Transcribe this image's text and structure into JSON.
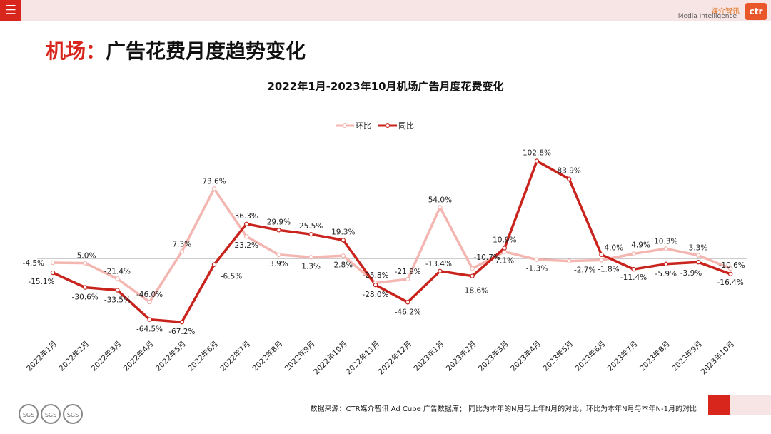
{
  "header": {
    "menu_icon": "menu-icon",
    "brand_cn": "媒介智讯",
    "brand_en": "Media Intelligence",
    "brand_logo": "ctr"
  },
  "page": {
    "title_highlight": "机场：",
    "title_rest": "广告花费月度趋势变化"
  },
  "chart_data": {
    "type": "line",
    "title": "2022年1月-2023年10月机场广告月度花费变化",
    "categories": [
      "2022年1月",
      "2022年2月",
      "2022年3月",
      "2022年4月",
      "2022年5月",
      "2022年6月",
      "2022年7月",
      "2022年8月",
      "2022年9月",
      "2022年10月",
      "2022年11月",
      "2022年12月",
      "2023年1月",
      "2023年2月",
      "2023年3月",
      "2023年4月",
      "2023年5月",
      "2023年6月",
      "2023年7月",
      "2023年8月",
      "2023年9月",
      "2023年10月"
    ],
    "series": [
      {
        "name": "环比",
        "color": "#f4b6b1",
        "values": [
          -4.5,
          -5.0,
          -21.4,
          -46.0,
          7.3,
          73.6,
          23.2,
          3.9,
          1.3,
          2.8,
          -25.8,
          -21.9,
          54.0,
          -10.7,
          7.1,
          -1.3,
          -2.7,
          -1.8,
          4.9,
          10.3,
          3.3,
          -10.6
        ],
        "labels": [
          "-4.5%",
          "-5.0%",
          "-21.4%",
          "-46.0%",
          "7.3%",
          "73.6%",
          "23.2%",
          "3.9%",
          "1.3%",
          "2.8%",
          "-25.8%",
          "-21.9%",
          "54.0%",
          "-10.7%",
          "7.1%",
          "-1.3%",
          "-2.7%",
          "-1.8%",
          "4.9%",
          "10.3%",
          "3.3%",
          "-10.6%"
        ]
      },
      {
        "name": "同比",
        "color": "#c9231d",
        "values": [
          -15.1,
          -30.6,
          -33.5,
          -64.5,
          -67.2,
          -6.5,
          36.3,
          29.9,
          25.5,
          19.3,
          -28.0,
          -46.2,
          -13.4,
          -18.6,
          10.9,
          102.8,
          83.9,
          4.0,
          -11.4,
          -5.9,
          -3.9,
          -16.4
        ],
        "labels": [
          "-15.1%",
          "-30.6%",
          "-33.5%",
          "-64.5%",
          "-67.2%",
          "-6.5%",
          "36.3%",
          "29.9%",
          "25.5%",
          "19.3%",
          "-28.0%",
          "-46.2%",
          "-13.4%",
          "-18.6%",
          "10.9%",
          "102.8%",
          "83.9%",
          "4.0%",
          "-11.4%",
          "-5.9%",
          "-3.9%",
          "-16.4%"
        ]
      }
    ],
    "legend_position": "top-center",
    "ylim": [
      -80,
      120
    ]
  },
  "footer": {
    "source": "数据来源：CTR媒介智讯 Ad Cube 广告数据库；  同比为本年的N月与上年N月的对比，环比为本年N月与本年N-1月的对比",
    "badges": [
      "SGS",
      "SGS",
      "SGS"
    ]
  }
}
